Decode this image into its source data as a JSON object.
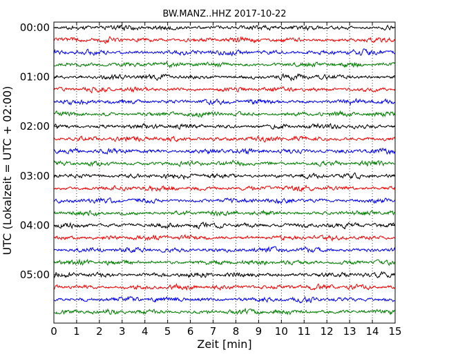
{
  "chart_data": {
    "type": "line",
    "title": "BW.MANZ..HHZ 2017-10-22",
    "xlabel": "Zeit  [min]",
    "ylabel": "UTC (Lokalzeit = UTC + 02:00)",
    "xlim": [
      0,
      15
    ],
    "x_ticks": [
      "0",
      "1",
      "2",
      "3",
      "4",
      "5",
      "6",
      "7",
      "8",
      "9",
      "10",
      "11",
      "12",
      "13",
      "14",
      "15"
    ],
    "y_tick_labels": [
      "00:00",
      "01:00",
      "02:00",
      "03:00",
      "04:00",
      "05:00"
    ],
    "rows_per_hour": 4,
    "row_count": 24,
    "trace_color_cycle": [
      "#000000",
      "#ff0000",
      "#0000ff",
      "#007f00"
    ],
    "grid": "vertical dotted lines at each minute",
    "traces": [
      {
        "start": "00:00"
      },
      {
        "start": "00:15"
      },
      {
        "start": "00:30"
      },
      {
        "start": "00:45"
      },
      {
        "start": "01:00"
      },
      {
        "start": "01:15"
      },
      {
        "start": "01:30"
      },
      {
        "start": "01:45"
      },
      {
        "start": "02:00"
      },
      {
        "start": "02:15"
      },
      {
        "start": "02:30"
      },
      {
        "start": "02:45"
      },
      {
        "start": "03:00"
      },
      {
        "start": "03:15"
      },
      {
        "start": "03:30"
      },
      {
        "start": "03:45"
      },
      {
        "start": "04:00"
      },
      {
        "start": "04:15"
      },
      {
        "start": "04:30"
      },
      {
        "start": "04:45"
      },
      {
        "start": "05:00"
      },
      {
        "start": "05:15"
      },
      {
        "start": "05:30"
      },
      {
        "start": "05:45"
      }
    ]
  }
}
